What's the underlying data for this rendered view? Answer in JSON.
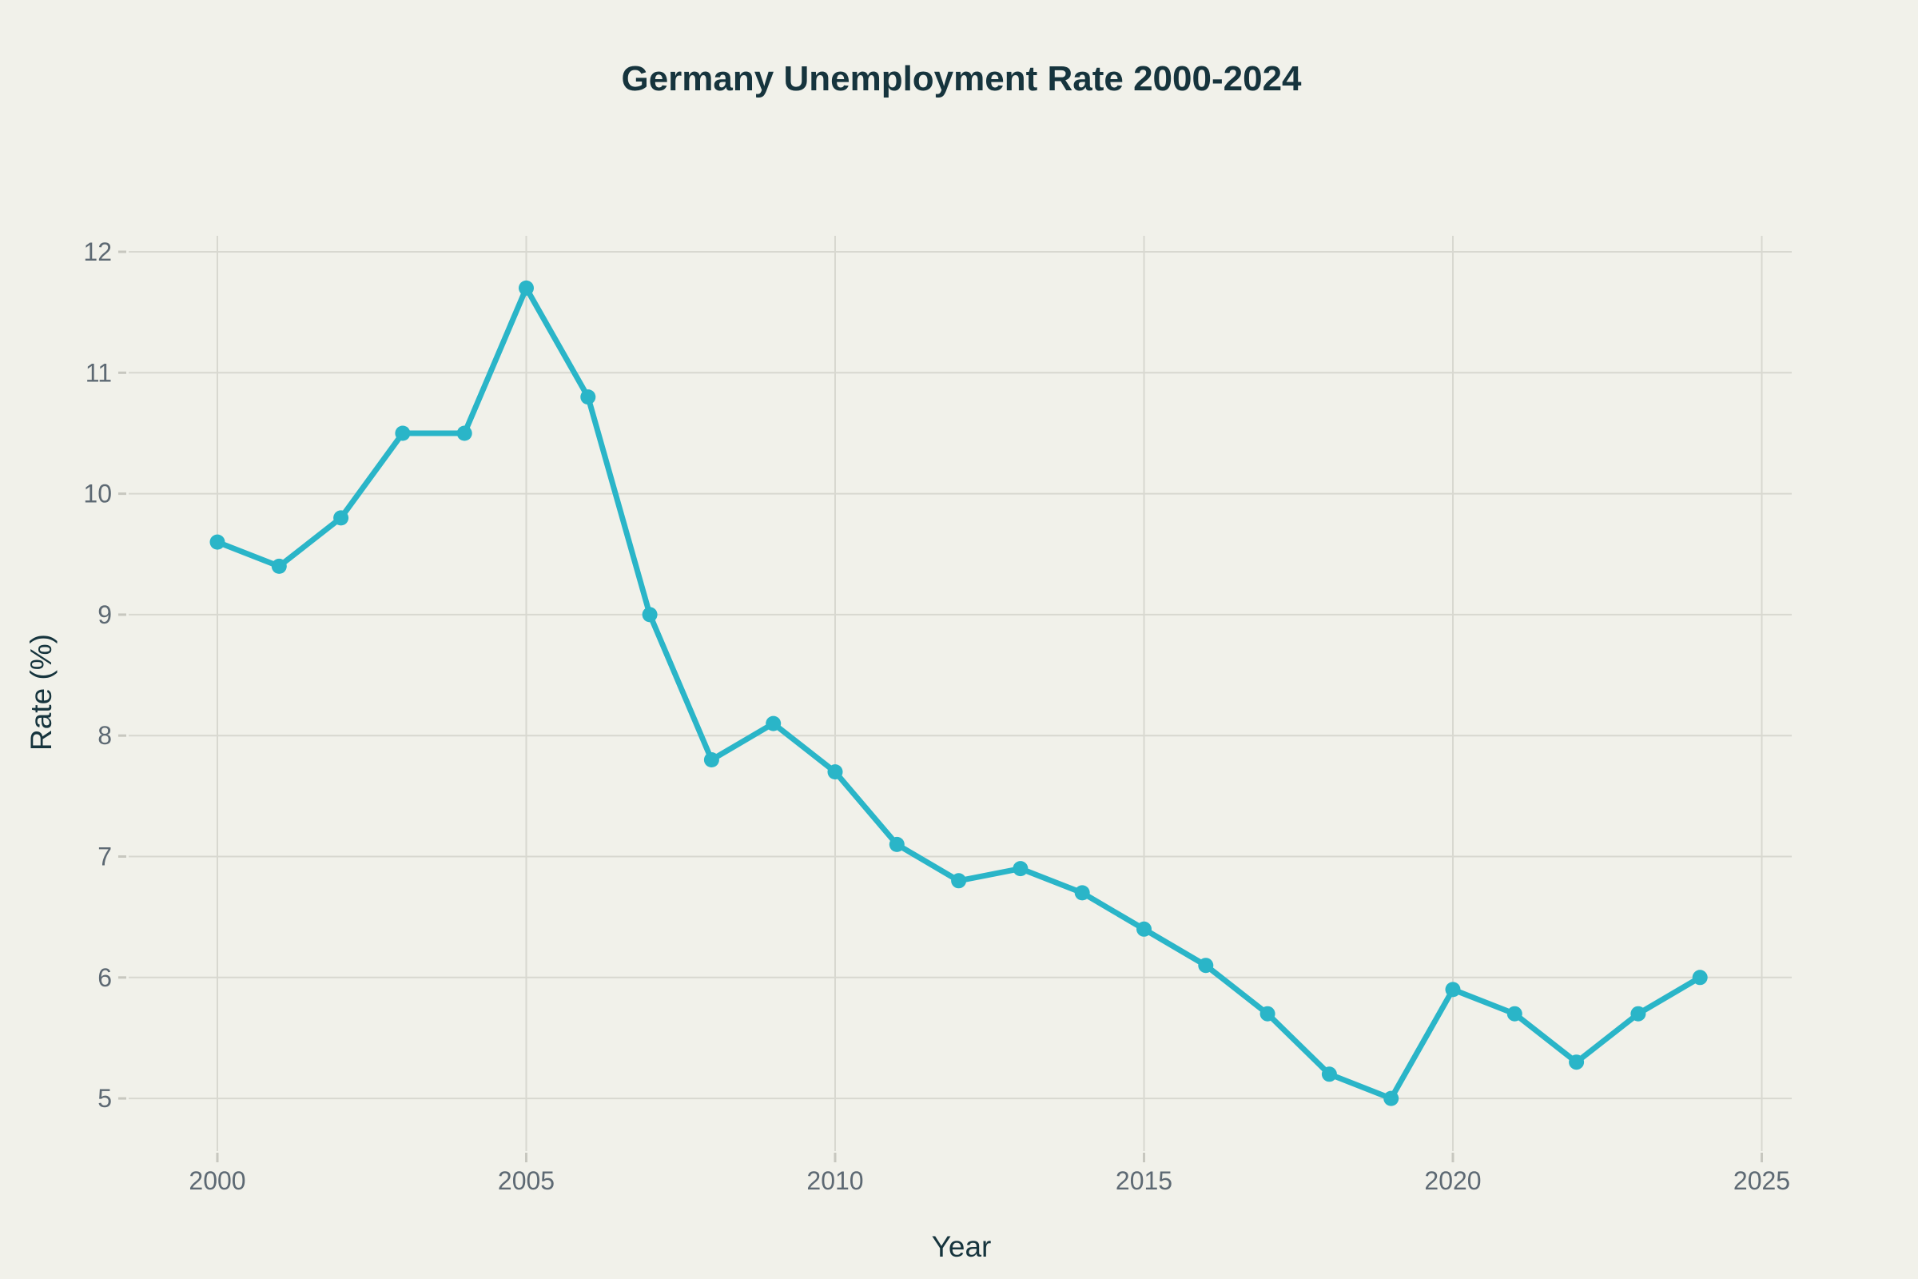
{
  "page": {
    "background": "#f1f1ea"
  },
  "chart_data": {
    "type": "line",
    "title": "Germany Unemployment Rate 2000-2024",
    "xlabel": "Year",
    "ylabel": "Rate (%)",
    "x": [
      2000,
      2001,
      2002,
      2003,
      2004,
      2005,
      2006,
      2007,
      2008,
      2009,
      2010,
      2011,
      2012,
      2013,
      2014,
      2015,
      2016,
      2017,
      2018,
      2019,
      2020,
      2021,
      2022,
      2023,
      2024
    ],
    "values": [
      9.6,
      9.4,
      9.8,
      10.5,
      10.5,
      11.7,
      10.8,
      9.0,
      7.8,
      8.1,
      7.7,
      7.1,
      6.8,
      6.9,
      6.7,
      6.4,
      6.1,
      5.7,
      5.2,
      5.0,
      5.9,
      5.7,
      5.3,
      5.7,
      6.0
    ],
    "x_ticks": [
      2000,
      2005,
      2010,
      2015,
      2020,
      2025
    ],
    "y_ticks": [
      5,
      6,
      7,
      8,
      9,
      10,
      11,
      12
    ],
    "xlim": [
      1998.55,
      2025.5
    ],
    "ylim": [
      4.56,
      12.13
    ],
    "grid": true,
    "legend_visible": false,
    "marker": "circle",
    "colors": {
      "line": "#2ab5c8",
      "grid": "#d8d8d0",
      "tick_mark": "#c7c7bf",
      "tick_label": "#5d6973",
      "axis_title": "#16343d",
      "title": "#16343d",
      "background": "#f1f1ea"
    }
  }
}
